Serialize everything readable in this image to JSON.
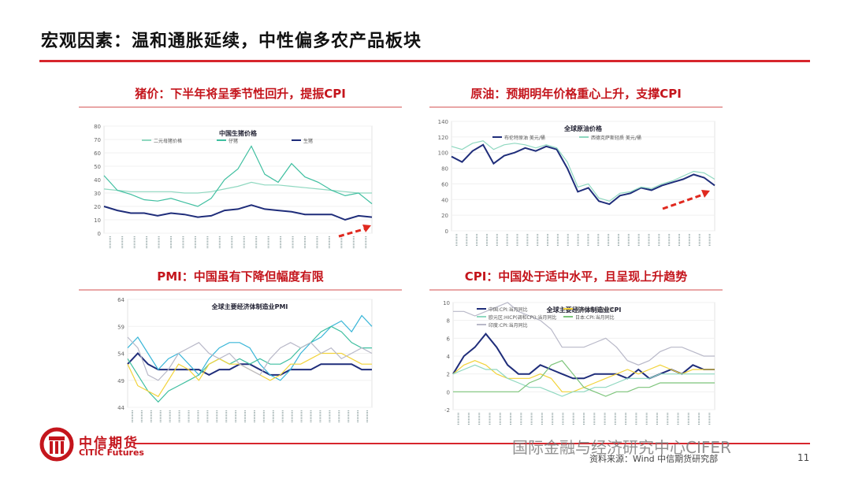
{
  "slide": {
    "title": "宏观因素：温和通胀延续，中性偏多农产品板块",
    "page_number": "11",
    "source_note": "资料来源：Wind 中信期货研究部",
    "watermark": "国际金融与经济研究中心CIFER",
    "logo_cn": "中信期货",
    "logo_en": "CITIC Futures"
  },
  "colors": {
    "accent_red": "#d7262d",
    "panel_title_red": "#c4151c",
    "series_dark_blue": "#1f2d7a",
    "series_teal": "#3fbfa0",
    "series_light_teal": "#8fd8c0",
    "series_cyan": "#3ab6d8",
    "series_yellow": "#f2d33a",
    "series_gray": "#b8b8c8",
    "series_green": "#7cc47a",
    "series_purple": "#a98fd0",
    "trend_arrow": "#e0291f"
  },
  "panels": {
    "pork": {
      "heading": "猪价：下半年将呈季节性回升，提振CPI"
    },
    "oil": {
      "heading": "原油：预期明年价格重心上升，支撑CPI"
    },
    "pmi": {
      "heading": "PMI：中国虽有下降但幅度有限"
    },
    "cpi": {
      "heading": "CPI：中国处于适中水平，且呈现上升趋势"
    }
  },
  "chart_data": [
    {
      "type": "line",
      "title": "中国生猪价格",
      "series": [
        {
          "name": "二元母猪价格",
          "color": "#8fd8c0"
        },
        {
          "name": "仔猪",
          "color": "#3fbfa0"
        },
        {
          "name": "生猪",
          "color": "#1f2d7a"
        }
      ],
      "ylim": [
        0,
        80
      ],
      "yticks": [
        "0",
        "10",
        "20",
        "30",
        "40",
        "50",
        "60",
        "70",
        "80"
      ],
      "series_values": {
        "二元母猪价格": [
          33,
          32,
          31,
          31,
          31,
          31,
          30,
          30,
          31,
          33,
          35,
          38,
          36,
          36,
          35,
          34,
          33,
          32,
          31,
          30,
          30
        ],
        "仔猪": [
          43,
          32,
          29,
          25,
          24,
          26,
          23,
          20,
          26,
          40,
          48,
          65,
          44,
          38,
          52,
          42,
          38,
          32,
          28,
          30,
          22
        ],
        "生猪": [
          20,
          17,
          15,
          15,
          13,
          15,
          14,
          12,
          13,
          17,
          18,
          21,
          18,
          17,
          16,
          14,
          14,
          14,
          10,
          13,
          12
        ]
      },
      "trend_arrow": "up"
    },
    {
      "type": "line",
      "title": "全球原油价格",
      "series": [
        {
          "name": "布伦特原油 美元/桶",
          "color": "#1f2d7a"
        },
        {
          "name": "西德克萨斯轻质 美元/桶",
          "color": "#8fd8c0"
        }
      ],
      "ylim": [
        0,
        140
      ],
      "yticks": [
        "0",
        "20",
        "40",
        "60",
        "80",
        "100",
        "120",
        "140"
      ],
      "series_values": {
        "布伦特原油": [
          95,
          88,
          102,
          110,
          86,
          96,
          100,
          106,
          102,
          108,
          104,
          80,
          50,
          55,
          38,
          34,
          45,
          48,
          55,
          52,
          58,
          62,
          66,
          72,
          68,
          58
        ],
        "西德克萨斯轻质": [
          108,
          104,
          112,
          115,
          104,
          110,
          112,
          110,
          106,
          110,
          106,
          88,
          56,
          60,
          42,
          38,
          48,
          50,
          56,
          54,
          60,
          64,
          70,
          76,
          74,
          66
        ]
      },
      "trend_arrow": "up"
    },
    {
      "type": "line",
      "title": "全球主要经济体制造业PMI",
      "ylim": [
        44,
        64
      ],
      "yticks": [
        "44",
        "49",
        "54",
        "59",
        "64"
      ],
      "series_values": {
        "中国": [
          52,
          54,
          52,
          51,
          51,
          51,
          51,
          51,
          50,
          51,
          51,
          52,
          52,
          51,
          50,
          50,
          51,
          51,
          51,
          52,
          52,
          52,
          52,
          51,
          51
        ],
        "美国": [
          55,
          57,
          54,
          51,
          53,
          54,
          52,
          50,
          53,
          55,
          56,
          56,
          55,
          52,
          50,
          49,
          51,
          54,
          56,
          57,
          59,
          60,
          58,
          61,
          59
        ],
        "欧元区": [
          53,
          50,
          47,
          45,
          47,
          48,
          49,
          50,
          52,
          53,
          52,
          53,
          52,
          53,
          52,
          52,
          53,
          55,
          56,
          58,
          59,
          58,
          56,
          55,
          55
        ],
        "日本": [
          52,
          48,
          47,
          46,
          49,
          52,
          51,
          49,
          52,
          53,
          52,
          52,
          51,
          50,
          49,
          50,
          52,
          52,
          53,
          54,
          54,
          54,
          53,
          52,
          52
        ],
        "英国": [
          57,
          55,
          50,
          49,
          51,
          54,
          55,
          56,
          54,
          53,
          54,
          52,
          51,
          50,
          53,
          55,
          56,
          55,
          56,
          54,
          55,
          53,
          54,
          55,
          54
        ]
      }
    },
    {
      "type": "line",
      "title": "全球主要经济体制造业CPI",
      "ylim": [
        -2,
        10
      ],
      "yticks": [
        "-2",
        "0",
        "2",
        "4",
        "6",
        "8",
        "10"
      ],
      "series": [
        {
          "name": "中国:CPI:当月同比",
          "color": "#1f2d7a"
        },
        {
          "name": "美国:CPI:当月同比",
          "color": "#f2d33a"
        },
        {
          "name": "欧元区:HICP(调和CPI):当月同比",
          "color": "#8fd8c0"
        },
        {
          "name": "日本:CPI:当月同比",
          "color": "#7cc47a"
        },
        {
          "name": "印度:CPI:当月同比",
          "color": "#b8b8c8"
        }
      ],
      "series_values": {
        "中国:CPI:当月同比": [
          2,
          4,
          5,
          6.5,
          5,
          3,
          2,
          2,
          3,
          2.5,
          2,
          1.5,
          1.5,
          2,
          2,
          2,
          1.5,
          2.5,
          1.5,
          2,
          2.5,
          2,
          3,
          2.5,
          2.5
        ],
        "美国:CPI:当月同比": [
          2,
          3,
          3.5,
          3,
          2,
          1.5,
          1.5,
          1.5,
          2,
          1.5,
          0,
          0,
          0.5,
          1,
          1.5,
          2,
          2.5,
          2,
          2.5,
          3,
          2.5,
          2,
          2.5,
          2.5,
          2.5
        ],
        "欧元区:HICP(调和CPI):当月同比": [
          2,
          2.5,
          3,
          2.5,
          2.5,
          1.5,
          1,
          0.5,
          0.5,
          0,
          -0.5,
          0,
          0,
          0.5,
          0.5,
          1,
          1.5,
          1.5,
          1.5,
          2,
          2,
          2,
          2,
          2,
          2
        ],
        "日本:CPI:当月同比": [
          0,
          0,
          0,
          0,
          0,
          0,
          0,
          1,
          1.5,
          3,
          3.5,
          2,
          0.5,
          0,
          -0.5,
          0,
          0,
          0.5,
          0.5,
          1,
          1,
          1,
          1,
          1,
          1
        ],
        "印度:CPI:当月同比": [
          9,
          9,
          8.5,
          9,
          9.5,
          10,
          9,
          8.5,
          8,
          7,
          5,
          5,
          5,
          5.5,
          6,
          5,
          3.5,
          3,
          3.5,
          4.5,
          5,
          5,
          4.5,
          4,
          4
        ]
      }
    }
  ]
}
